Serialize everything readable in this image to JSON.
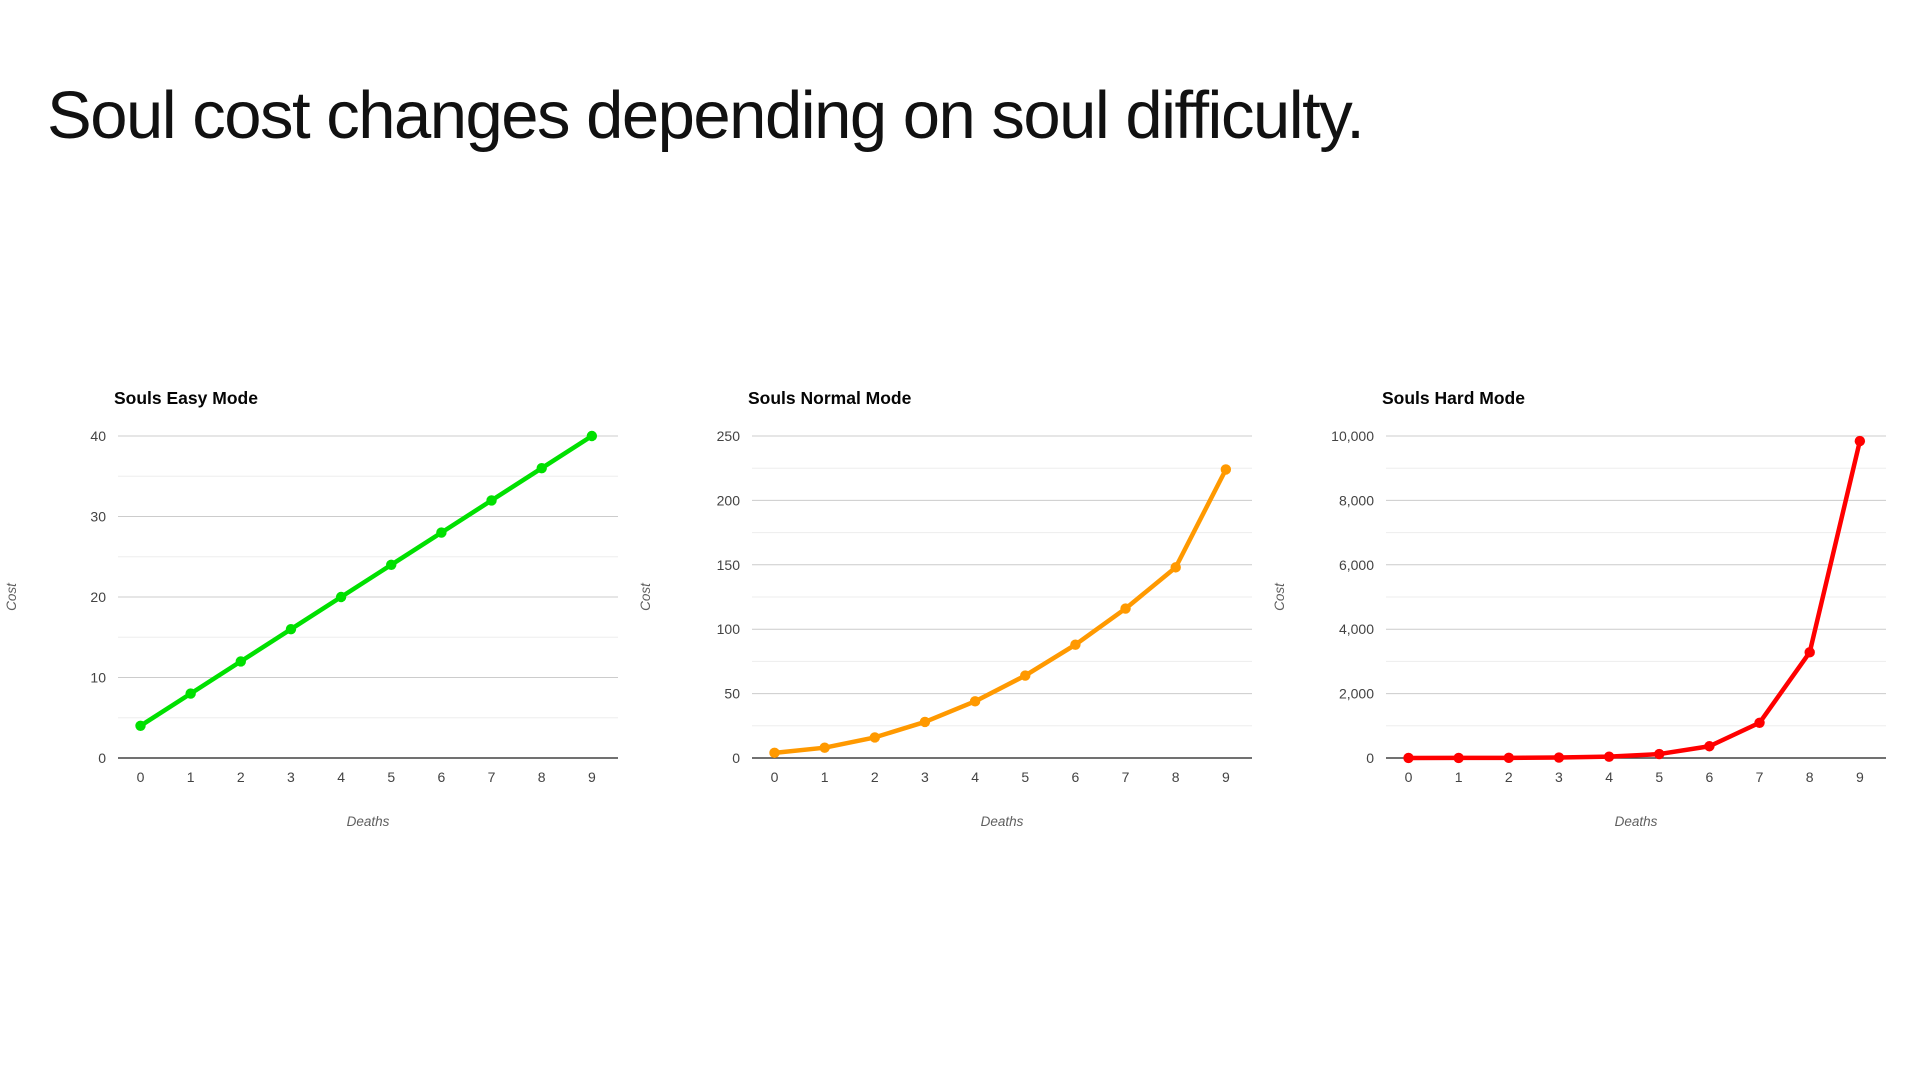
{
  "slide": {
    "title": "Soul cost changes depending on soul difficulty."
  },
  "chart_data": [
    {
      "type": "line",
      "title": "Souls Easy Mode",
      "xlabel": "Deaths",
      "ylabel": "Cost",
      "x": [
        0,
        1,
        2,
        3,
        4,
        5,
        6,
        7,
        8,
        9
      ],
      "values": [
        4,
        8,
        12,
        16,
        20,
        24,
        28,
        32,
        36,
        40
      ],
      "ylim": [
        0,
        40
      ],
      "yticks": [
        0,
        10,
        20,
        30,
        40
      ],
      "ytick_labels": [
        "0",
        "10",
        "20",
        "30",
        "40"
      ],
      "ytick_interval": 10,
      "minor_grid_step": 5,
      "line_color": "#00e000",
      "grid": true,
      "legend": "none"
    },
    {
      "type": "line",
      "title": "Souls Normal Mode",
      "xlabel": "Deaths",
      "ylabel": "Cost",
      "x": [
        0,
        1,
        2,
        3,
        4,
        5,
        6,
        7,
        8,
        9
      ],
      "values": [
        4,
        8,
        16,
        28,
        44,
        64,
        88,
        116,
        148,
        224
      ],
      "ylim": [
        0,
        250
      ],
      "yticks": [
        0,
        50,
        100,
        150,
        200,
        250
      ],
      "ytick_labels": [
        "0",
        "50",
        "100",
        "150",
        "200",
        "250"
      ],
      "ytick_interval": 50,
      "minor_grid_step": 25,
      "line_color": "#ff9900",
      "grid": true,
      "legend": "none"
    },
    {
      "type": "line",
      "title": "Souls Hard Mode",
      "xlabel": "Deaths",
      "ylabel": "Cost",
      "x": [
        0,
        1,
        2,
        3,
        4,
        5,
        6,
        7,
        8,
        9
      ],
      "values": [
        1,
        2,
        5,
        14,
        41,
        122,
        365,
        1094,
        3281,
        9842
      ],
      "ylim": [
        0,
        10000
      ],
      "yticks": [
        0,
        2000,
        4000,
        6000,
        8000,
        10000
      ],
      "ytick_labels": [
        "0",
        "2,000",
        "4,000",
        "6,000",
        "8,000",
        "10,000"
      ],
      "ytick_interval": 2000,
      "minor_grid_step": 1000,
      "line_color": "#ff0000",
      "grid": true,
      "legend": "none"
    }
  ],
  "colors": {
    "background": "#ffffff",
    "major_gridline": "#cccccc",
    "minor_gridline": "#ededed",
    "axis_line": "#424242",
    "tick_label": "#434343",
    "axis_title": "#5f5f5f",
    "chart_title": "#050505",
    "easy_line": "#00e000",
    "normal_line": "#ff9900",
    "hard_line": "#ff0000"
  }
}
